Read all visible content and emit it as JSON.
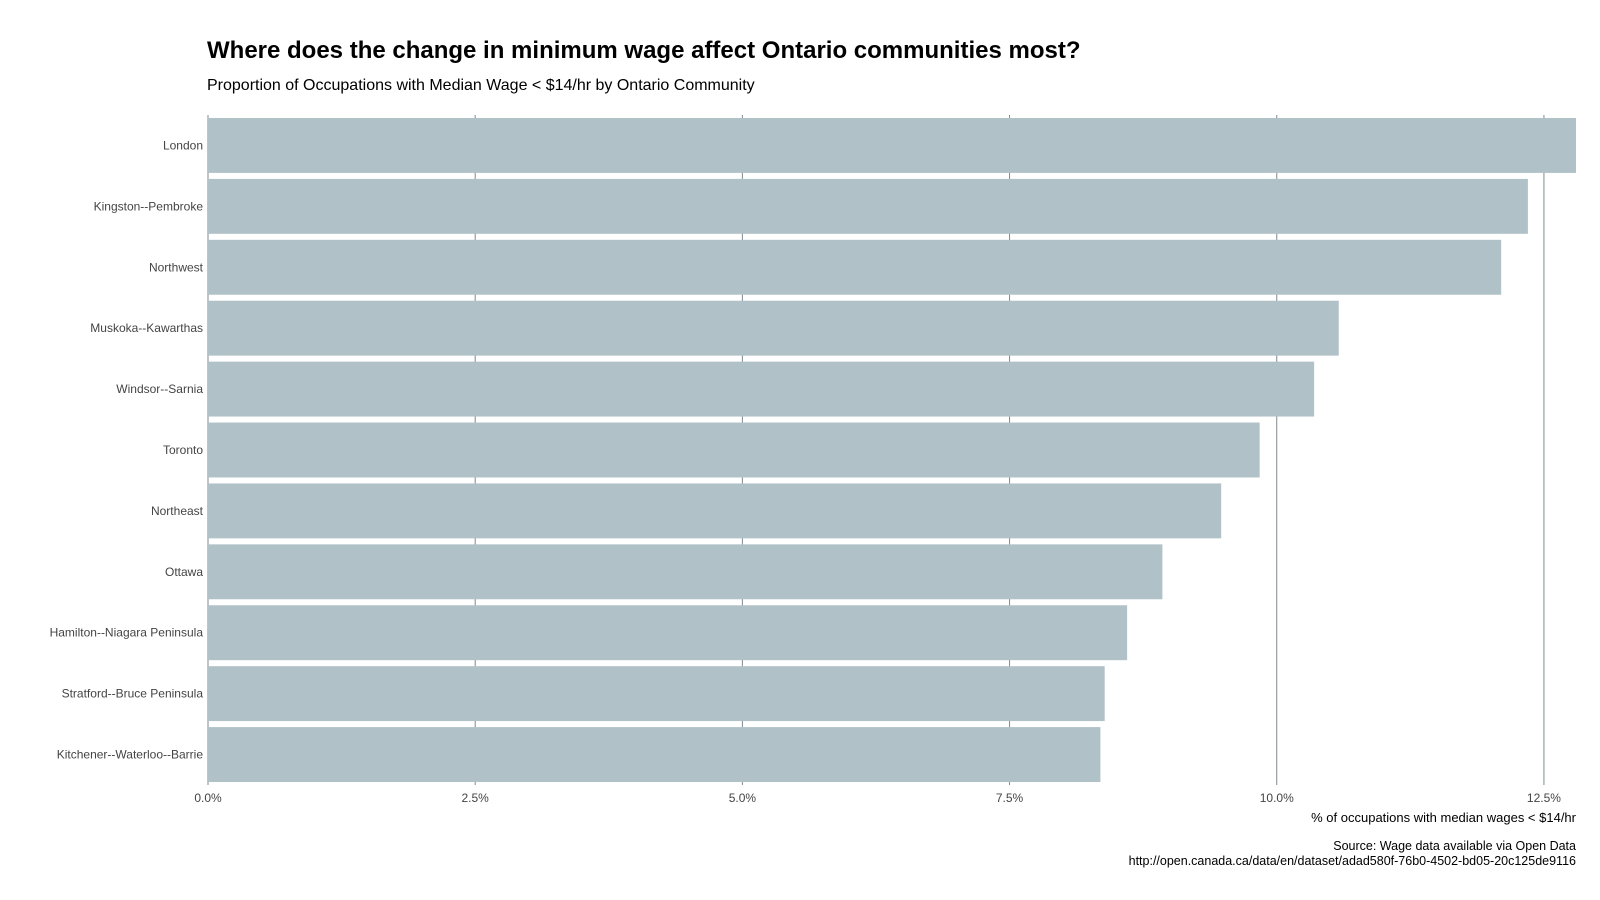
{
  "chart_data": {
    "type": "bar",
    "orientation": "horizontal",
    "title": "Where does the change in minimum wage affect Ontario communities most?",
    "subtitle": "Proportion of Occupations with Median Wage < $14/hr by Ontario Community",
    "xlabel": "% of occupations with median wages < $14/hr",
    "ylabel": "",
    "categories": [
      "London",
      "Kingston--Pembroke",
      "Northwest",
      "Muskoka--Kawarthas",
      "Windsor--Sarnia",
      "Toronto",
      "Northeast",
      "Ottawa",
      "Hamilton--Niagara Peninsula",
      "Stratford--Bruce Peninsula",
      "Kitchener--Waterloo--Barrie"
    ],
    "values": [
      12.8,
      12.35,
      12.1,
      10.58,
      10.35,
      9.84,
      9.48,
      8.93,
      8.6,
      8.39,
      8.35
    ],
    "xlim": [
      0,
      12.8
    ],
    "x_ticks": [
      0,
      2.5,
      5.0,
      7.5,
      10.0,
      12.5
    ],
    "x_tick_labels": [
      "0.0%",
      "2.5%",
      "5.0%",
      "7.5%",
      "10.0%",
      "12.5%"
    ],
    "grid": "vertical",
    "legend": "none",
    "bar_color": "#b1c1c8",
    "grid_color": "#7f8a90",
    "caption_lines": [
      "Source: Wage data available via Open Data",
      "http://open.canada.ca/data/en/dataset/adad580f-76b0-4502-bd05-20c125de9116"
    ]
  }
}
